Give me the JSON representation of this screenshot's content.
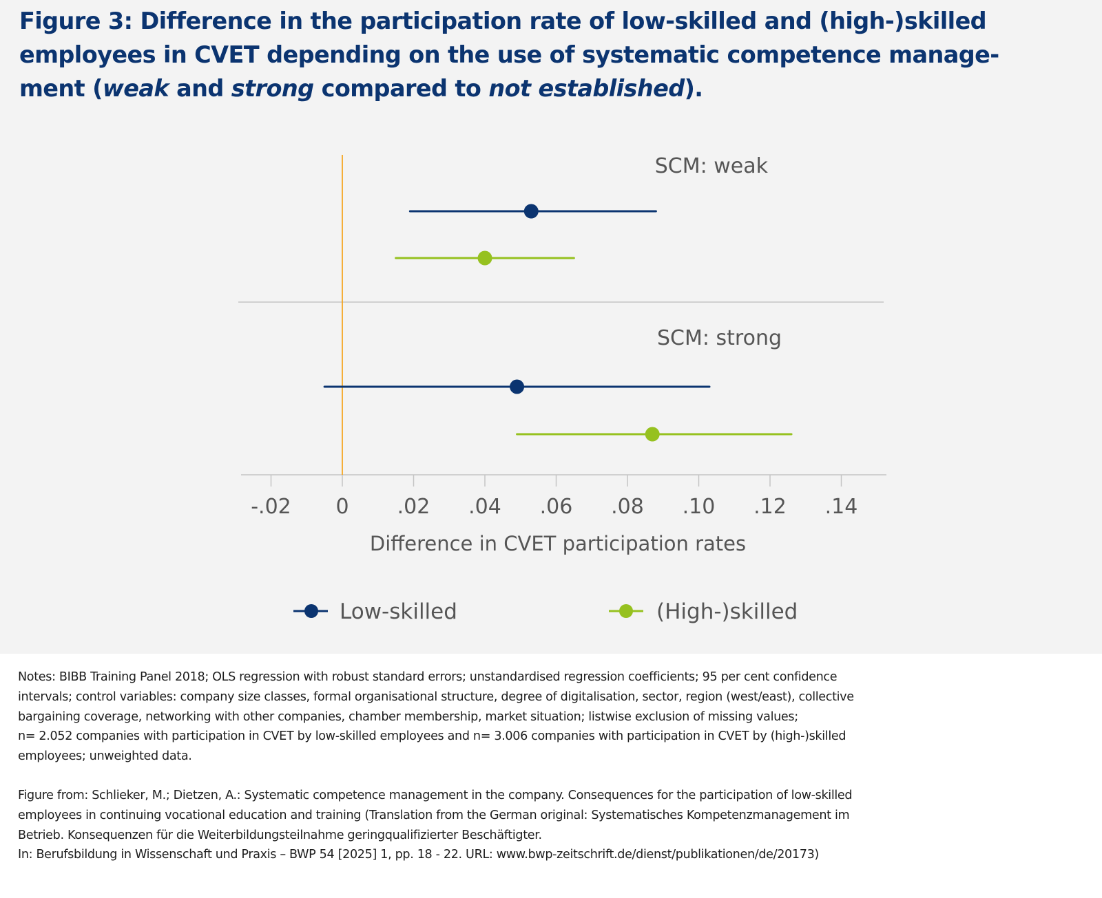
{
  "title": {
    "line1": "Figure 3: Difference in the participation rate of low-skilled and (high-)skilled",
    "line2": "employees in CVET depending on the use of systematic competence manage-",
    "line3_parts": [
      "ment (",
      "weak",
      " and ",
      "strong",
      " compared to ",
      "not established",
      ")."
    ]
  },
  "chart_data": {
    "type": "forest",
    "title": "",
    "xlabel": "Difference in CVET participation rates",
    "ylabel": "",
    "xlim": [
      -0.028,
      0.152
    ],
    "x_ticks": [
      -0.02,
      0,
      0.02,
      0.04,
      0.06,
      0.08,
      0.1,
      0.12,
      0.14
    ],
    "x_tick_labels": [
      "-.02",
      "0",
      ".02",
      ".04",
      ".06",
      ".08",
      ".10",
      ".12",
      ".14"
    ],
    "reference_line": 0,
    "reference_color": "#f5a623",
    "grid": false,
    "legend_position": "bottom",
    "panels": [
      {
        "label": "SCM: weak",
        "estimates": [
          {
            "series": "Low-skilled",
            "value": 0.053,
            "ci_low": 0.019,
            "ci_high": 0.088
          },
          {
            "series": "(High-)skilled",
            "value": 0.04,
            "ci_low": 0.015,
            "ci_high": 0.065
          }
        ]
      },
      {
        "label": "SCM: strong",
        "estimates": [
          {
            "series": "Low-skilled",
            "value": 0.049,
            "ci_low": -0.005,
            "ci_high": 0.103
          },
          {
            "series": "(High-)skilled",
            "value": 0.087,
            "ci_low": 0.049,
            "ci_high": 0.126
          }
        ]
      }
    ],
    "series": [
      {
        "name": "Low-skilled",
        "color": "#0b3470"
      },
      {
        "name": "(High-)skilled",
        "color": "#96c11f"
      }
    ]
  },
  "notes": {
    "lines": [
      "Notes: BIBB Training Panel 2018; OLS regression with robust standard errors; unstandardised regression coefficients; 95 per cent confidence",
      "intervals; control variables: company size classes, formal organisational structure, degree of digitalisation, sector, region (west/east), collective",
      "bargaining coverage, networking with other companies, chamber membership, market situation; listwise exclusion of missing values;",
      "n= 2.052 companies with participation in CVET by low-skilled employees and n= 3.006 companies with participation in CVET by (high-)skilled",
      "employees; unweighted data."
    ],
    "source_lines": [
      "Figure from: Schlieker, M.; Dietzen, A.: Systematic competence management in the company. Consequences for the participation of low-skilled",
      "employees in continuing vocational education and training (Translation from the German original: Systematisches Kompetenzmanagement im",
      "Betrieb. Konsequenzen für die Weiterbildungsteilnahme geringqualifizierter Beschäftigter.",
      "In: Berufsbildung in Wissenschaft und Praxis – BWP 54 [2025] 1, pp. 18 - 22. URL: www.bwp-zeitschrift.de/dienst/publikationen/de/20173)"
    ]
  }
}
